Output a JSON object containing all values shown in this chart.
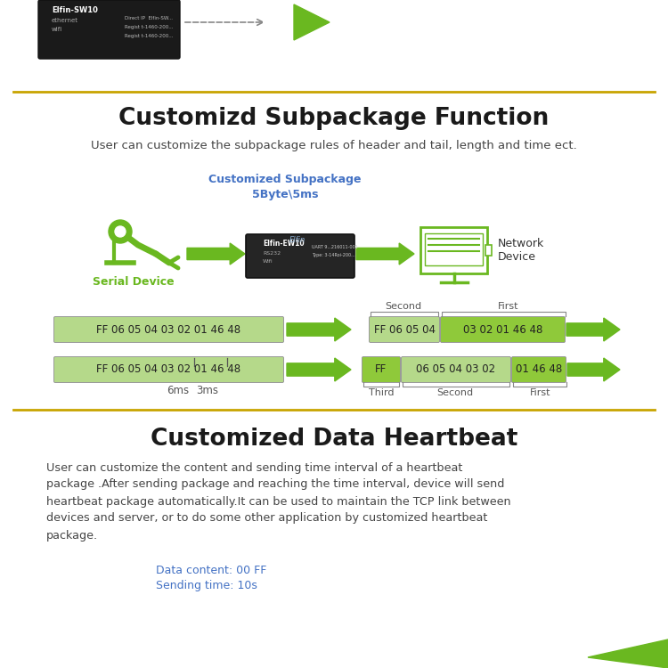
{
  "bg_color": "#ffffff",
  "separator_color": "#c8a400",
  "section1_title": "Customizd Subpackage Function",
  "section1_subtitle": "User can customize the subpackage rules of header and tail, length and time ect.",
  "subpackage_label": "Customized Subpackage\n5Byte\\5ms",
  "serial_device_label": "Serial Device",
  "network_device_label": "Network\nDevice",
  "row1_left_hex": "FF 06 05 04 03 02 01 46 48",
  "row2_left_hex": "FF 06 05 04 03 02 01 46 48",
  "row1_right_hex1": "FF 06 05 04",
  "row1_right_hex2": "03 02 01 46 48",
  "row2_right_hex1": "FF",
  "row2_right_hex2": "06 05 04 03 02",
  "row2_right_hex3": "01 46 48",
  "timing_labels": [
    "6ms",
    "3ms"
  ],
  "col_labels_row1": [
    "Second",
    "First"
  ],
  "col_labels_row2": [
    "Third",
    "Second",
    "First"
  ],
  "section2_title": "Customized Data Heartbeat",
  "section2_body_lines": [
    "User can customize the content and sending time interval of a heartbeat",
    "package .After sending package and reaching the time interval, device will send",
    "heartbeat package automatically.It can be used to maintain the TCP link between",
    "devices and server, or to do some other application by customized heartbeat",
    "package."
  ],
  "data_content_label": "Data content: 00 FF",
  "sending_time_label": "Sending time: 10s",
  "green_color": "#6ab820",
  "hex_bg_green": "#b5d98a",
  "hex_bg_dark": "#8fc93a",
  "text_dark": "#333333",
  "text_blue": "#4472c4",
  "sep_color": "#c8a400",
  "gray_text": "#555555"
}
